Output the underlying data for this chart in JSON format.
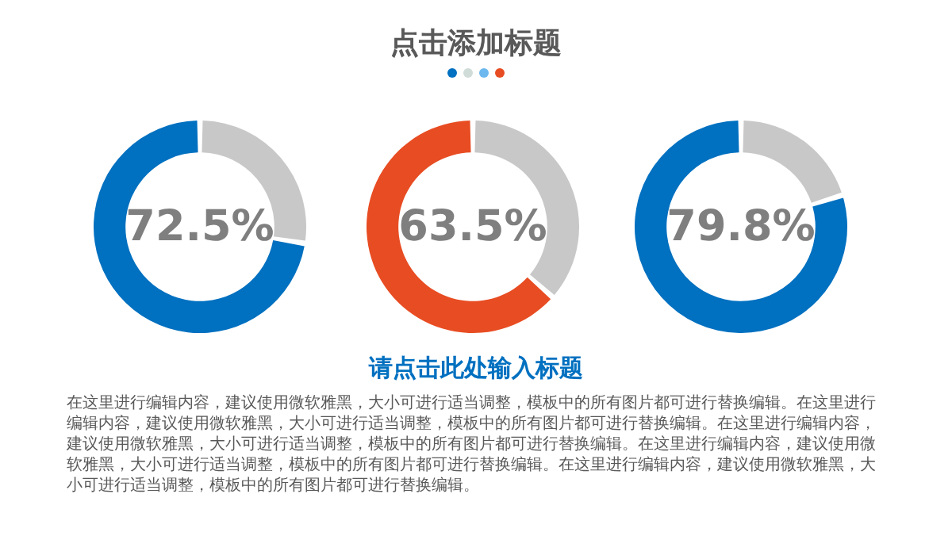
{
  "chart_data": [
    {
      "type": "other",
      "title": "点击添加标题"
    },
    {
      "type": "donut",
      "categories": [
        null,
        null
      ],
      "values": [
        72.5,
        27.5
      ],
      "colors": [
        "#0070c0",
        "#c8c8c8"
      ],
      "value_labels": [
        "72.5%",
        null
      ]
    },
    {
      "type": "donut",
      "categories": [
        null,
        null
      ],
      "values": [
        63.5,
        36.5
      ],
      "colors": [
        "#e84c22",
        "#c8c8c8"
      ],
      "value_labels": [
        "63.5%",
        null
      ]
    },
    {
      "type": "donut",
      "categories": [
        null,
        null
      ],
      "values": [
        79.8,
        20.2
      ],
      "colors": [
        "#0070c0",
        "#c8c8c8"
      ],
      "value_labels": [
        "79.8%",
        null
      ]
    },
    {
      "type": "other",
      "title": "请点击此处输入标题",
      "annotations": [
        "在这里进行编辑内容，建议使用微软雅黑，大小可进行适当调整，模板中的所有图片都可进行替换编辑。在这里进行编辑内容，建议使用微软雅黑，大小可进行适当调整，模板中的所有图片都可进行替换编辑。在这里进行编辑内容，建议使用微软雅黑，大小可进行适当调整，模板中的所有图片都可进行替换编辑。在这里进行编辑内容，建议使用微软雅黑，大小可进行适当调整，模板中的所有图片都可进行替换编辑。在这里进行编辑内容，建议使用微软雅黑，大小可进行适当调整，模板中的所有图片都可进行替换编辑。"
      ]
    }
  ]
}
